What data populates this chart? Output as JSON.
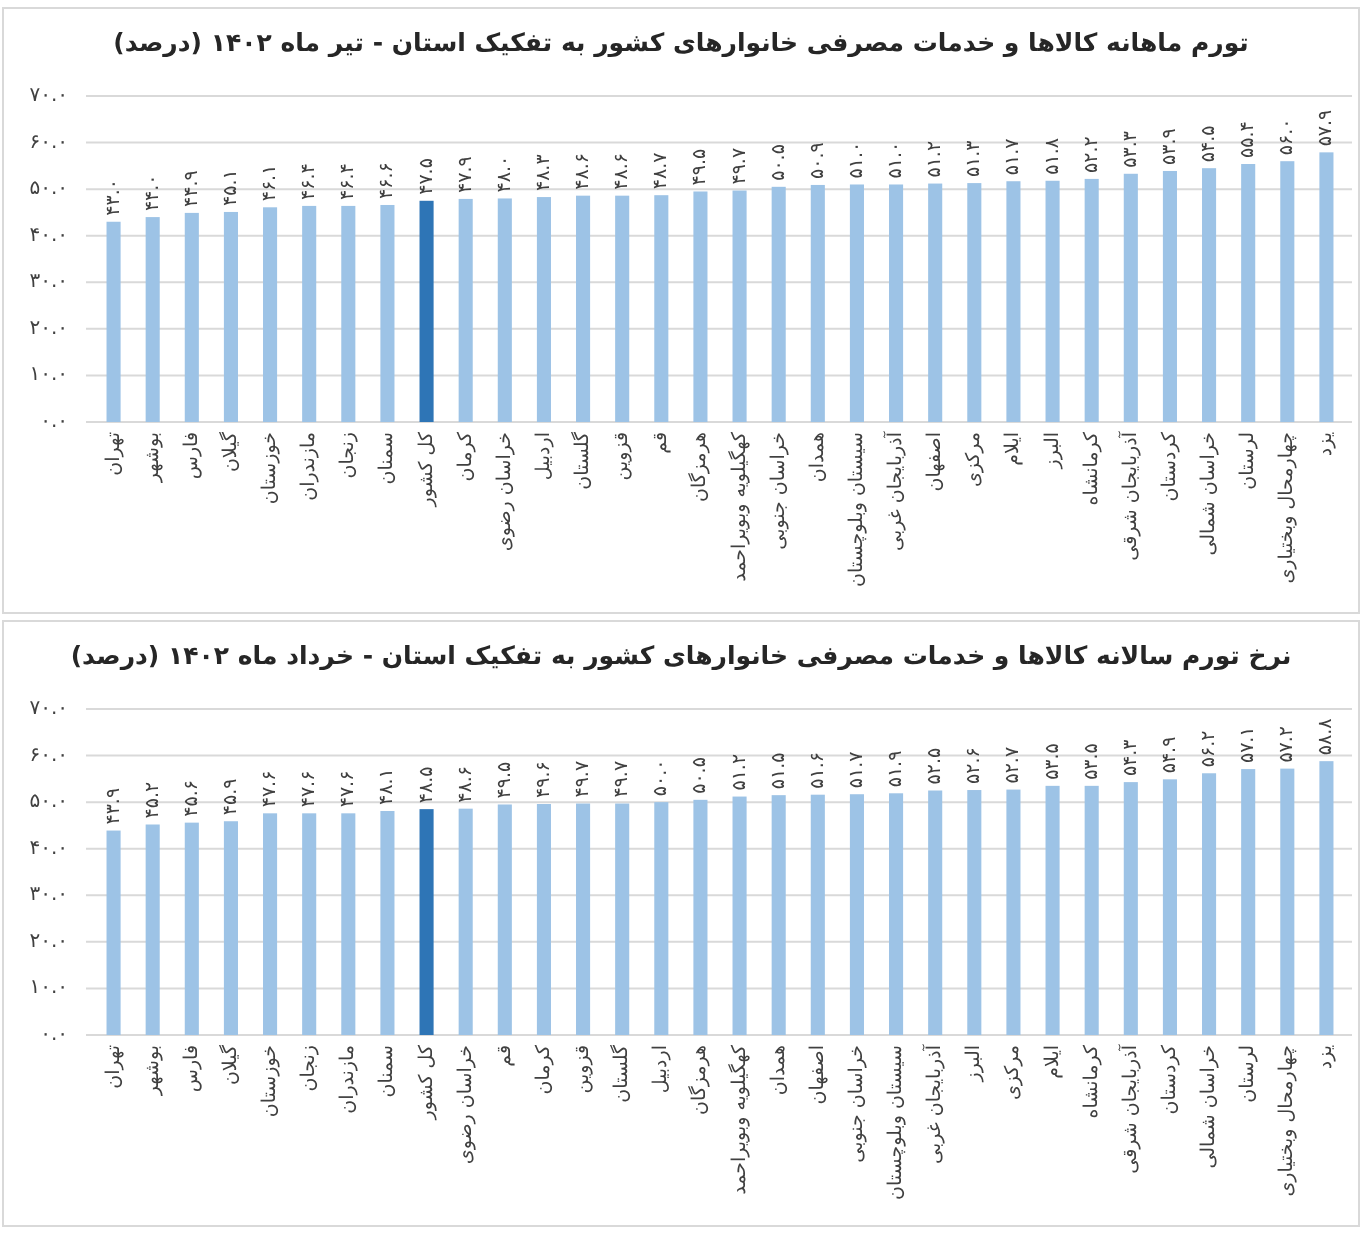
{
  "chart_data": [
    {
      "type": "bar",
      "title": "تورم ماهانه کالاها و خدمات مصرفی خانوارهای کشور به تفکیک استان - تیر ماه ۱۴۰۲ (درصد)",
      "categories": [
        "تهران",
        "بوشهر",
        "فارس",
        "گیلان",
        "خوزستان",
        "مازندران",
        "زنجان",
        "سمنان",
        "کل کشور",
        "کرمان",
        "خراسان رضوی",
        "اردبیل",
        "گلستان",
        "قزوین",
        "قم",
        "هرمزگان",
        "کهگیلویه وبویراحمد",
        "خراسان جنوبی",
        "همدان",
        "سیستان وبلوچستان",
        "آذربایجان غربی",
        "اصفهان",
        "مرکزی",
        "ایلام",
        "البرز",
        "کرمانشاه",
        "آذربایجان شرقی",
        "کردستان",
        "خراسان شمالی",
        "لرستان",
        "چهارمحال وبختیاری",
        "یزد"
      ],
      "values": [
        43.0,
        44.0,
        44.9,
        45.1,
        46.1,
        46.4,
        46.4,
        46.6,
        47.5,
        47.9,
        48.0,
        48.3,
        48.6,
        48.6,
        48.7,
        49.5,
        49.7,
        50.5,
        50.9,
        51.0,
        51.0,
        51.2,
        51.3,
        51.7,
        51.8,
        52.2,
        53.3,
        53.9,
        54.5,
        55.4,
        56.0,
        57.9
      ],
      "value_labels": [
        "۴۳.۰",
        "۴۴.۰",
        "۴۴.۹",
        "۴۵.۱",
        "۴۶.۱",
        "۴۶.۴",
        "۴۶.۴",
        "۴۶.۶",
        "۴۷.۵",
        "۴۷.۹",
        "۴۸.۰",
        "۴۸.۳",
        "۴۸.۶",
        "۴۸.۶",
        "۴۸.۷",
        "۴۹.۵",
        "۴۹.۷",
        "۵۰.۵",
        "۵۰.۹",
        "۵۱.۰",
        "۵۱.۰",
        "۵۱.۲",
        "۵۱.۳",
        "۵۱.۷",
        "۵۱.۸",
        "۵۲.۲",
        "۵۳.۳",
        "۵۳.۹",
        "۵۴.۵",
        "۵۵.۴",
        "۵۶.۰",
        "۵۷.۹"
      ],
      "colors": [
        "#9dc3e6",
        "#9dc3e6",
        "#9dc3e6",
        "#9dc3e6",
        "#9dc3e6",
        "#9dc3e6",
        "#9dc3e6",
        "#9dc3e6",
        "#2e75b6",
        "#9dc3e6",
        "#9dc3e6",
        "#9dc3e6",
        "#9dc3e6",
        "#9dc3e6",
        "#9dc3e6",
        "#9dc3e6",
        "#9dc3e6",
        "#9dc3e6",
        "#9dc3e6",
        "#9dc3e6",
        "#9dc3e6",
        "#9dc3e6",
        "#9dc3e6",
        "#9dc3e6",
        "#9dc3e6",
        "#9dc3e6",
        "#9dc3e6",
        "#9dc3e6",
        "#9dc3e6",
        "#9dc3e6",
        "#9dc3e6",
        "#9dc3e6"
      ],
      "ylim": [
        0,
        70
      ],
      "yticks": [
        {
          "value": 0,
          "label": "۰.۰"
        },
        {
          "value": 10,
          "label": "۱۰.۰"
        },
        {
          "value": 20,
          "label": "۲۰.۰"
        },
        {
          "value": 30,
          "label": "۳۰.۰"
        },
        {
          "value": 40,
          "label": "۴۰.۰"
        },
        {
          "value": 50,
          "label": "۵۰.۰"
        },
        {
          "value": 60,
          "label": "۶۰.۰"
        },
        {
          "value": 70,
          "label": "۷۰.۰"
        }
      ],
      "grid": "y"
    },
    {
      "type": "bar",
      "title": "نرخ تورم سالانه کالاها و خدمات مصرفی خانوارهای کشور به تفکیک استان - خرداد ماه ۱۴۰۲ (درصد)",
      "categories": [
        "تهران",
        "بوشهر",
        "فارس",
        "گیلان",
        "خوزستان",
        "زنجان",
        "مازندران",
        "سمنان",
        "کل کشور",
        "خراسان رضوی",
        "قم",
        "کرمان",
        "قزوین",
        "گلستان",
        "اردبیل",
        "هرمزگان",
        "کهگیلویه وبویراحمد",
        "همدان",
        "اصفهان",
        "خراسان جنوبی",
        "سیستان وبلوچستان",
        "آذربایجان غربی",
        "البرز",
        "مرکزی",
        "ایلام",
        "کرمانشاه",
        "آذربایجان شرقی",
        "کردستان",
        "خراسان شمالی",
        "لرستان",
        "چهارمحال وبختیاری",
        "یزد"
      ],
      "values": [
        43.9,
        45.2,
        45.6,
        45.9,
        47.6,
        47.6,
        47.6,
        48.1,
        48.5,
        48.6,
        49.5,
        49.6,
        49.7,
        49.7,
        50.0,
        50.5,
        51.2,
        51.5,
        51.6,
        51.7,
        51.9,
        52.5,
        52.6,
        52.7,
        53.5,
        53.5,
        54.3,
        54.9,
        56.2,
        57.1,
        57.2,
        58.8
      ],
      "value_labels": [
        "۴۳.۹",
        "۴۵.۲",
        "۴۵.۶",
        "۴۵.۹",
        "۴۷.۶",
        "۴۷.۶",
        "۴۷.۶",
        "۴۸.۱",
        "۴۸.۵",
        "۴۸.۶",
        "۴۹.۵",
        "۴۹.۶",
        "۴۹.۷",
        "۴۹.۷",
        "۵۰.۰",
        "۵۰.۵",
        "۵۱.۲",
        "۵۱.۵",
        "۵۱.۶",
        "۵۱.۷",
        "۵۱.۹",
        "۵۲.۵",
        "۵۲.۶",
        "۵۲.۷",
        "۵۳.۵",
        "۵۳.۵",
        "۵۴.۳",
        "۵۴.۹",
        "۵۶.۲",
        "۵۷.۱",
        "۵۷.۲",
        "۵۸.۸"
      ],
      "colors": [
        "#9dc3e6",
        "#9dc3e6",
        "#9dc3e6",
        "#9dc3e6",
        "#9dc3e6",
        "#9dc3e6",
        "#9dc3e6",
        "#9dc3e6",
        "#2e75b6",
        "#9dc3e6",
        "#9dc3e6",
        "#9dc3e6",
        "#9dc3e6",
        "#9dc3e6",
        "#9dc3e6",
        "#9dc3e6",
        "#9dc3e6",
        "#9dc3e6",
        "#9dc3e6",
        "#9dc3e6",
        "#9dc3e6",
        "#9dc3e6",
        "#9dc3e6",
        "#9dc3e6",
        "#9dc3e6",
        "#9dc3e6",
        "#9dc3e6",
        "#9dc3e6",
        "#9dc3e6",
        "#9dc3e6",
        "#9dc3e6",
        "#9dc3e6"
      ],
      "ylim": [
        0,
        70
      ],
      "yticks": [
        {
          "value": 0,
          "label": "۰.۰"
        },
        {
          "value": 10,
          "label": "۱۰.۰"
        },
        {
          "value": 20,
          "label": "۲۰.۰"
        },
        {
          "value": 30,
          "label": "۳۰.۰"
        },
        {
          "value": 40,
          "label": "۴۰.۰"
        },
        {
          "value": 50,
          "label": "۵۰.۰"
        },
        {
          "value": 60,
          "label": "۶۰.۰"
        },
        {
          "value": 70,
          "label": "۷۰.۰"
        }
      ],
      "grid": "y"
    }
  ]
}
